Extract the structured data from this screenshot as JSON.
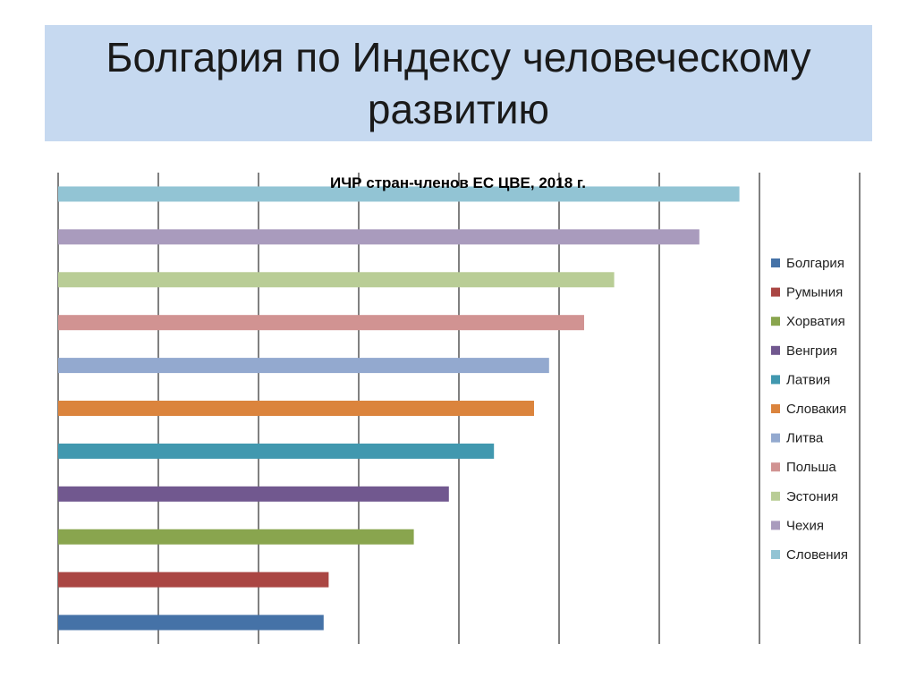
{
  "slide": {
    "title": "Болгария по Индексу человеческому развитию"
  },
  "chart_data": {
    "type": "bar",
    "orientation": "horizontal",
    "title": "ИЧР стран-членов ЕС ЦВЕ, 2018 г.",
    "xlim": [
      0,
      0.8
    ],
    "grid": "vertical",
    "legend": "right",
    "series": [
      {
        "name": "Болгария",
        "value": 0.265,
        "color": "#4572a7"
      },
      {
        "name": "Румыния",
        "value": 0.27,
        "color": "#aa4643"
      },
      {
        "name": "Хорватия",
        "value": 0.355,
        "color": "#89a54e"
      },
      {
        "name": "Венгрия",
        "value": 0.39,
        "color": "#71588f"
      },
      {
        "name": "Латвия",
        "value": 0.435,
        "color": "#4198af"
      },
      {
        "name": "Словакия",
        "value": 0.475,
        "color": "#db843d"
      },
      {
        "name": "Литва",
        "value": 0.49,
        "color": "#93a9cf"
      },
      {
        "name": "Польша",
        "value": 0.525,
        "color": "#d19392"
      },
      {
        "name": "Эстония",
        "value": 0.555,
        "color": "#b9cd96"
      },
      {
        "name": "Чехия",
        "value": 0.64,
        "color": "#a99bbd"
      },
      {
        "name": "Словения",
        "value": 0.68,
        "color": "#92c4d4"
      }
    ]
  }
}
